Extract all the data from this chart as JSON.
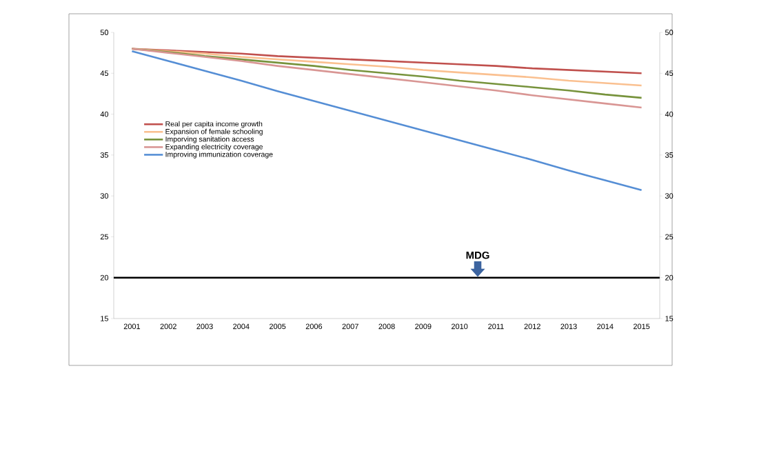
{
  "chart_data": {
    "type": "line",
    "categories": [
      "2001",
      "2002",
      "2003",
      "2004",
      "2005",
      "2006",
      "2007",
      "2008",
      "2009",
      "2010",
      "2011",
      "2012",
      "2013",
      "2014",
      "2015"
    ],
    "series": [
      {
        "name": "Real per capita income growth",
        "color": "#c0504d",
        "values": [
          48,
          47.8,
          47.6,
          47.4,
          47.1,
          46.9,
          46.7,
          46.5,
          46.3,
          46.1,
          45.9,
          45.6,
          45.4,
          45.2,
          45.0
        ]
      },
      {
        "name": "Expansion of female schooling",
        "color": "#fac090",
        "values": [
          48,
          47.7,
          47.4,
          47.0,
          46.7,
          46.4,
          46.1,
          45.8,
          45.4,
          45.1,
          44.8,
          44.5,
          44.1,
          43.8,
          43.5
        ]
      },
      {
        "name": "Imporving sanitation access",
        "color": "#77933c",
        "values": [
          48,
          47.6,
          47.1,
          46.7,
          46.3,
          45.9,
          45.4,
          45.0,
          44.6,
          44.1,
          43.7,
          43.3,
          42.9,
          42.4,
          42.0
        ]
      },
      {
        "name": "Expanding electricity coverage",
        "color": "#d99694",
        "values": [
          48,
          47.5,
          47.0,
          46.5,
          45.9,
          45.4,
          44.9,
          44.4,
          43.9,
          43.4,
          42.9,
          42.3,
          41.8,
          41.3,
          40.8
        ]
      },
      {
        "name": "Improving immunization coverage",
        "color": "#558ed5",
        "values": [
          47.7,
          46.5,
          45.3,
          44.1,
          42.8,
          41.6,
          40.4,
          39.2,
          38.0,
          36.8,
          35.6,
          34.4,
          33.1,
          31.9,
          30.7
        ]
      }
    ],
    "ylim": [
      15,
      50
    ],
    "yticks": [
      15,
      20,
      25,
      30,
      35,
      40,
      45,
      50
    ],
    "y2lim": [
      15,
      50
    ],
    "y2ticks": [
      15,
      20,
      25,
      30,
      35,
      40,
      45,
      50
    ],
    "ref_lines": [
      {
        "axis": "y",
        "value": 20,
        "color": "#000000",
        "label": "MDG"
      }
    ],
    "legend": "top left",
    "grid": false,
    "marker": "none",
    "line_style": "solid"
  }
}
